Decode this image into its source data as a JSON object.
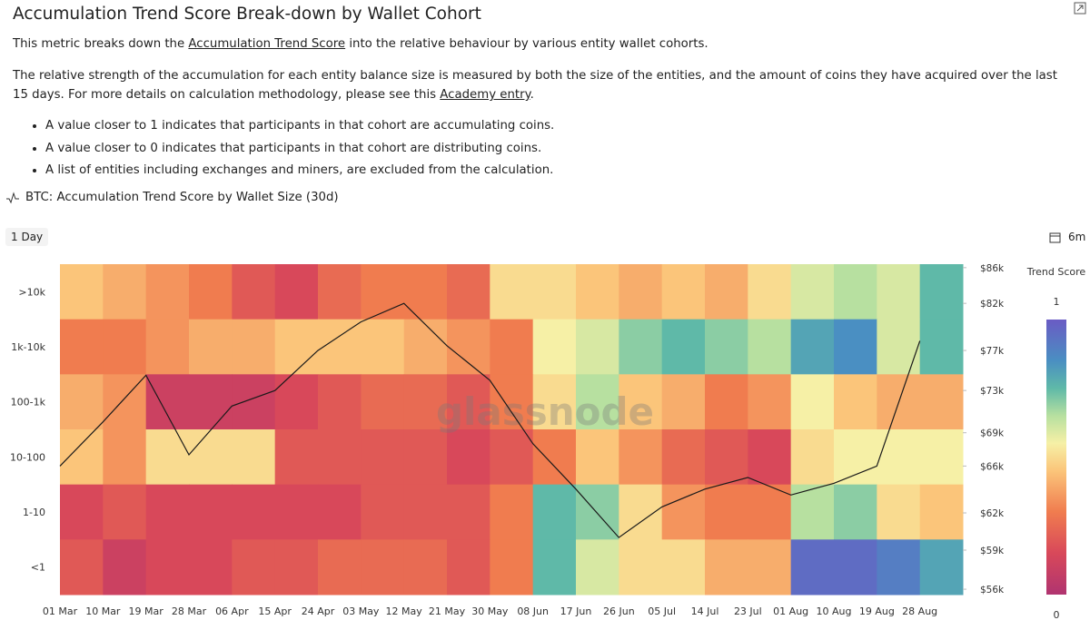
{
  "header": {
    "title": "Accumulation Trend Score Break-down by Wallet Cohort",
    "intro": [
      "This metric breaks down the ",
      "Accumulation Trend Score",
      " into the relative behaviour by various entity wallet cohorts."
    ],
    "detail": [
      "The relative strength of the accumulation for each entity balance size is measured by both the size of the entities, and the amount of coins they have acquired over the last 15 days. For more details on calculation methodology, please see this ",
      "Academy entry",
      "."
    ],
    "bullets": [
      "A value closer to 1 indicates that participants in that cohort are accumulating coins.",
      "A value closer to 0 indicates that participants in that cohort are distributing coins.",
      "A list of entities including exchanges and miners, are excluded from the calculation."
    ]
  },
  "toolbar": {
    "resolution": "1 Day",
    "range": "6m"
  },
  "chart_data": {
    "type": "heatmap",
    "title": "BTC: Accumulation Trend Score by Wallet Size (30d)",
    "watermark": "glassnode",
    "categories": [
      "01 Mar",
      "10 Mar",
      "19 Mar",
      "28 Mar",
      "06 Apr",
      "15 Apr",
      "24 Apr",
      "03 May",
      "12 May",
      "21 May",
      "30 May",
      "08 Jun",
      "17 Jun",
      "26 Jun",
      "05 Jul",
      "14 Jul",
      "23 Jul",
      "01 Aug",
      "10 Aug",
      "19 Aug",
      "28 Aug"
    ],
    "series": [
      {
        "name": ">10k",
        "values": [
          0.45,
          0.4,
          0.35,
          0.3,
          0.2,
          0.15,
          0.25,
          0.3,
          0.3,
          0.25,
          0.5,
          0.5,
          0.45,
          0.4,
          0.45,
          0.4,
          0.5,
          0.6,
          0.65,
          0.6,
          0.75
        ]
      },
      {
        "name": "1k-10k",
        "values": [
          0.3,
          0.3,
          0.35,
          0.4,
          0.4,
          0.45,
          0.45,
          0.45,
          0.4,
          0.35,
          0.3,
          0.55,
          0.6,
          0.7,
          0.75,
          0.7,
          0.65,
          0.8,
          0.85,
          0.6,
          0.75
        ]
      },
      {
        "name": "100-1k",
        "values": [
          0.4,
          0.35,
          0.1,
          0.1,
          0.1,
          0.15,
          0.2,
          0.25,
          0.25,
          0.2,
          0.3,
          0.5,
          0.65,
          0.45,
          0.4,
          0.3,
          0.35,
          0.55,
          0.45,
          0.4,
          0.4
        ]
      },
      {
        "name": "10-100",
        "values": [
          0.45,
          0.35,
          0.5,
          0.5,
          0.5,
          0.2,
          0.2,
          0.2,
          0.2,
          0.15,
          0.2,
          0.3,
          0.45,
          0.35,
          0.25,
          0.2,
          0.15,
          0.5,
          0.55,
          0.55,
          0.55
        ]
      },
      {
        "name": "1-10",
        "values": [
          0.15,
          0.2,
          0.15,
          0.15,
          0.15,
          0.15,
          0.15,
          0.2,
          0.2,
          0.2,
          0.3,
          0.75,
          0.7,
          0.5,
          0.35,
          0.3,
          0.3,
          0.65,
          0.7,
          0.5,
          0.45
        ]
      },
      {
        "name": "<1",
        "values": [
          0.2,
          0.1,
          0.15,
          0.15,
          0.2,
          0.2,
          0.25,
          0.25,
          0.25,
          0.2,
          0.3,
          0.75,
          0.6,
          0.5,
          0.5,
          0.4,
          0.4,
          0.95,
          0.95,
          0.9,
          0.8
        ]
      }
    ],
    "price": {
      "axis": "y2",
      "color": "#1a1a1a",
      "values": [
        66000,
        70000,
        74500,
        67000,
        71500,
        73000,
        77000,
        80000,
        82000,
        77500,
        74000,
        68000,
        64000,
        60000,
        62500,
        64000,
        65000,
        63500,
        64500,
        66000,
        78000
      ]
    },
    "y2log": true,
    "y2lim": [
      55600,
      86400
    ],
    "y2ticks": [
      {
        "value": 86000,
        "label": "$86k"
      },
      {
        "value": 82000,
        "label": "$82k"
      },
      {
        "value": 77000,
        "label": "$77k"
      },
      {
        "value": 73000,
        "label": "$73k"
      },
      {
        "value": 69000,
        "label": "$69k"
      },
      {
        "value": 66000,
        "label": "$66k"
      },
      {
        "value": 62000,
        "label": "$62k"
      },
      {
        "value": 59000,
        "label": "$59k"
      },
      {
        "value": 56000,
        "label": "$56k"
      }
    ],
    "colorbar": {
      "title": "Trend Score",
      "zlim": [
        0,
        1
      ]
    },
    "colorscale": [
      [
        0,
        "#b03470"
      ],
      [
        0.15,
        "#d8485a"
      ],
      [
        0.3,
        "#f07c4f"
      ],
      [
        0.45,
        "#fbc57a"
      ],
      [
        0.55,
        "#f6f0a6"
      ],
      [
        0.65,
        "#b7e0a0"
      ],
      [
        0.75,
        "#5fb9a8"
      ],
      [
        0.85,
        "#4a8fc2"
      ],
      [
        1,
        "#6a5bc4"
      ]
    ]
  }
}
